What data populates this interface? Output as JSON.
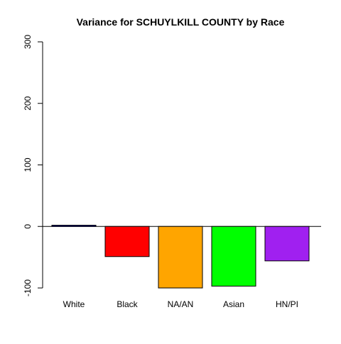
{
  "chart_data": {
    "type": "bar",
    "title": "Variance for SCHUYLKILL COUNTY by Race",
    "xlabel": "",
    "ylabel": "",
    "categories": [
      "White",
      "Black",
      "NA/AN",
      "Asian",
      "HN/PI"
    ],
    "values": [
      2,
      -49,
      -100,
      -97,
      -56
    ],
    "colors": [
      "#00008B",
      "#FF0000",
      "#FFA500",
      "#00FF00",
      "#A020F0"
    ],
    "ylim": [
      -100,
      300
    ],
    "yticks": [
      -100,
      0,
      100,
      200,
      300
    ],
    "ytick_labels": [
      "-100",
      "0",
      "100",
      "200",
      "300"
    ],
    "zero_line": true,
    "grid": false,
    "legend": "none"
  }
}
